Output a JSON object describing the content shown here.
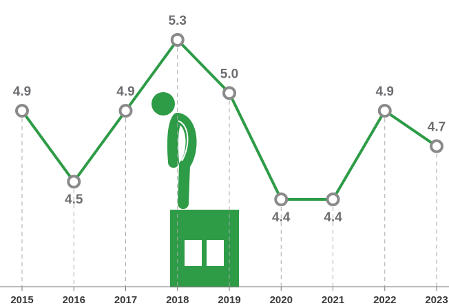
{
  "chart_data": {
    "type": "line",
    "categories": [
      "2015",
      "2016",
      "2017",
      "2018",
      "2019",
      "2020",
      "2021",
      "2022",
      "2023"
    ],
    "values": [
      4.9,
      4.5,
      4.9,
      5.3,
      5.0,
      4.4,
      4.4,
      4.9,
      4.7
    ],
    "value_labels": [
      "4.9",
      "4.5",
      "4.9",
      "5.3",
      "5.0",
      "4.4",
      "4.4",
      "4.9",
      "4.7"
    ],
    "color": "#2e9b47"
  }
}
